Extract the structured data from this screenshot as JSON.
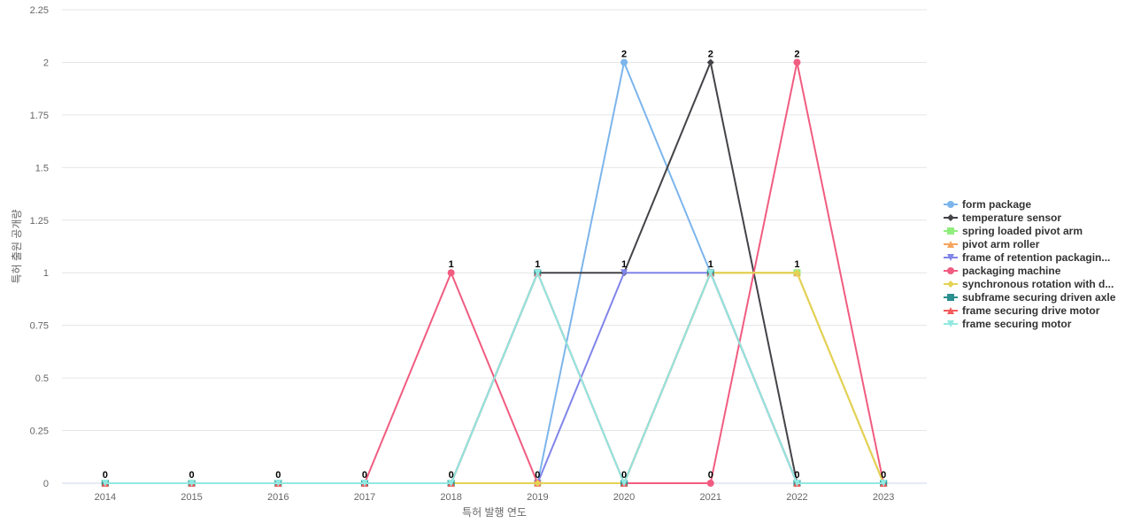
{
  "chart_data": {
    "type": "line",
    "xlabel": "특허 발행 연도",
    "ylabel": "특허 출원 공개량",
    "categories": [
      "2014",
      "2015",
      "2016",
      "2017",
      "2018",
      "2019",
      "2020",
      "2021",
      "2022",
      "2023"
    ],
    "ylim": [
      0,
      2.25
    ],
    "yticks": [
      "0",
      "0.25",
      "0.5",
      "0.75",
      "1",
      "1.25",
      "1.5",
      "1.75",
      "2",
      "2.25"
    ],
    "grid": true,
    "legend_position": "right",
    "series": [
      {
        "name": "form package",
        "color": "#7cb5ec",
        "marker": "circle",
        "values": [
          0,
          0,
          0,
          0,
          0,
          0,
          2,
          1,
          0,
          0
        ]
      },
      {
        "name": "temperature sensor",
        "color": "#434348",
        "marker": "diamond",
        "values": [
          0,
          0,
          0,
          0,
          0,
          1,
          1,
          2,
          0,
          0
        ]
      },
      {
        "name": "spring loaded pivot arm",
        "color": "#90ed7d",
        "marker": "square",
        "values": [
          0,
          0,
          0,
          0,
          0,
          0,
          0,
          1,
          1,
          0
        ]
      },
      {
        "name": "pivot arm roller",
        "color": "#f7a35c",
        "marker": "triangle",
        "values": [
          0,
          0,
          0,
          0,
          0,
          0,
          0,
          1,
          1,
          0
        ]
      },
      {
        "name": "frame of retention packagin...",
        "color": "#8085e9",
        "marker": "triangle-down",
        "values": [
          0,
          0,
          0,
          0,
          0,
          0,
          1,
          1,
          0,
          0
        ]
      },
      {
        "name": "packaging machine",
        "color": "#f15c80",
        "marker": "circle",
        "values": [
          0,
          0,
          0,
          0,
          1,
          0,
          0,
          0,
          2,
          0
        ]
      },
      {
        "name": "synchronous rotation with d...",
        "color": "#e4d354",
        "marker": "diamond",
        "values": [
          0,
          0,
          0,
          0,
          0,
          0,
          0,
          1,
          1,
          0
        ]
      },
      {
        "name": "subframe securing driven axle",
        "color": "#2b908f",
        "marker": "square",
        "values": [
          0,
          0,
          0,
          0,
          0,
          1,
          0,
          1,
          0,
          0
        ]
      },
      {
        "name": "frame securing drive motor",
        "color": "#f45b5b",
        "marker": "triangle",
        "values": [
          0,
          0,
          0,
          0,
          0,
          1,
          0,
          1,
          0,
          0
        ]
      },
      {
        "name": "frame securing motor",
        "color": "#91e8e1",
        "marker": "triangle-down",
        "values": [
          0,
          0,
          0,
          0,
          0,
          1,
          0,
          1,
          0,
          0
        ]
      }
    ],
    "data_labels": [
      "0",
      "0",
      "0",
      "0",
      "1",
      "1",
      "2",
      "2",
      "2",
      "0"
    ]
  }
}
